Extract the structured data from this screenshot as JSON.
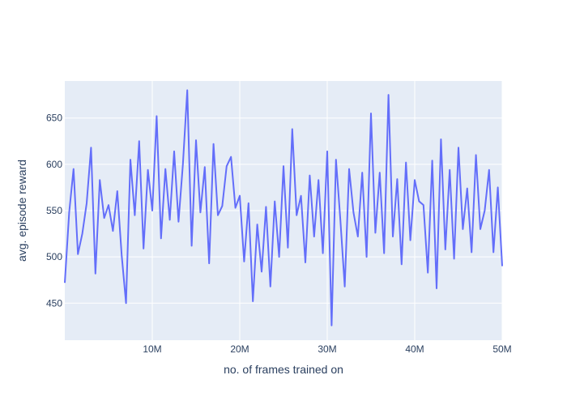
{
  "chart_data": {
    "type": "line",
    "title": "",
    "xlabel": "no. of frames trained on",
    "ylabel": "avg. episode reward",
    "xlim": [
      0,
      50000000
    ],
    "ylim": [
      410,
      690
    ],
    "x_ticks": [
      {
        "value": 10000000,
        "label": "10M"
      },
      {
        "value": 20000000,
        "label": "20M"
      },
      {
        "value": 30000000,
        "label": "30M"
      },
      {
        "value": 40000000,
        "label": "40M"
      },
      {
        "value": 50000000,
        "label": "50M"
      }
    ],
    "y_ticks": [
      {
        "value": 450,
        "label": "450"
      },
      {
        "value": 500,
        "label": "500"
      },
      {
        "value": 550,
        "label": "550"
      },
      {
        "value": 600,
        "label": "600"
      },
      {
        "value": 650,
        "label": "650"
      }
    ],
    "grid": true,
    "colors": {
      "plot_bg": "#e5ecf6",
      "grid": "#ffffff",
      "line": "#636efa",
      "text": "#2a3f5f"
    },
    "series": [
      {
        "x": [
          0,
          500000,
          1000000,
          1500000,
          2000000,
          2500000,
          3000000,
          3500000,
          4000000,
          4500000,
          5000000,
          5500000,
          6000000,
          6500000,
          7000000,
          7500000,
          8000000,
          8500000,
          9000000,
          9500000,
          10000000,
          10500000,
          11000000,
          11500000,
          12000000,
          12500000,
          13000000,
          13500000,
          14000000,
          14500000,
          15000000,
          15500000,
          16000000,
          16500000,
          17000000,
          17500000,
          18000000,
          18500000,
          19000000,
          19500000,
          20000000,
          20500000,
          21000000,
          21500000,
          22000000,
          22500000,
          23000000,
          23500000,
          24000000,
          24500000,
          25000000,
          25500000,
          26000000,
          26500000,
          27000000,
          27500000,
          28000000,
          28500000,
          29000000,
          29500000,
          30000000,
          30500000,
          31000000,
          31500000,
          32000000,
          32500000,
          33000000,
          33500000,
          34000000,
          34500000,
          35000000,
          35500000,
          36000000,
          36500000,
          37000000,
          37500000,
          38000000,
          38500000,
          39000000,
          39500000,
          40000000,
          40500000,
          41000000,
          41500000,
          42000000,
          42500000,
          43000000,
          43500000,
          44000000,
          44500000,
          45000000,
          45500000,
          46000000,
          46500000,
          47000000,
          47500000,
          48000000,
          48500000,
          49000000,
          49500000,
          50000000
        ],
        "values": [
          472,
          548,
          595,
          503,
          525,
          558,
          618,
          482,
          583,
          542,
          556,
          528,
          571,
          502,
          450,
          605,
          545,
          625,
          509,
          594,
          550,
          652,
          520,
          595,
          540,
          614,
          538,
          600,
          680,
          512,
          626,
          548,
          597,
          493,
          622,
          545,
          555,
          598,
          608,
          553,
          566,
          495,
          558,
          452,
          535,
          484,
          554,
          468,
          560,
          500,
          598,
          510,
          638,
          545,
          566,
          494,
          588,
          522,
          583,
          504,
          614,
          426,
          605,
          540,
          468,
          595,
          548,
          522,
          591,
          500,
          655,
          526,
          591,
          504,
          675,
          522,
          584,
          492,
          602,
          518,
          583,
          560,
          556,
          483,
          604,
          466,
          627,
          508,
          594,
          498,
          618,
          530,
          574,
          505,
          610,
          530,
          550,
          594,
          505,
          575,
          490
        ]
      }
    ]
  }
}
